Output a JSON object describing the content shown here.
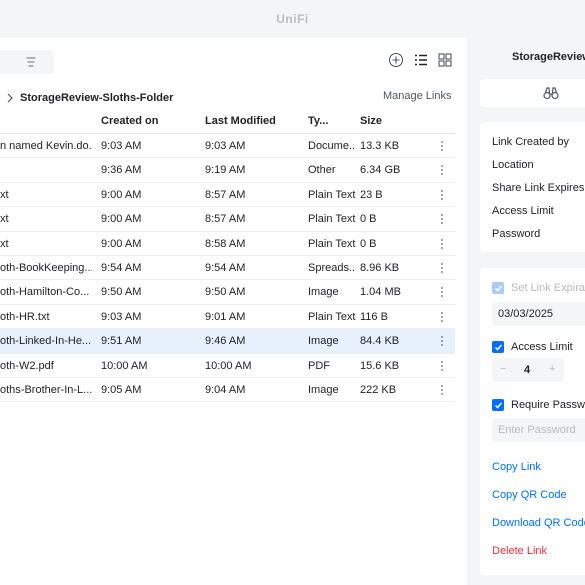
{
  "app": {
    "brand": "UniFi"
  },
  "toolbar": {
    "add_icon": "plus-circle-icon",
    "list_icon": "list-view-icon",
    "grid_icon": "grid-view-icon"
  },
  "breadcrumb": {
    "current": "StorageReview-Sloths-Folder"
  },
  "manage_links_label": "Manage Links",
  "table": {
    "columns": [
      "Created on",
      "Last Modified",
      "Ty...",
      "Size"
    ],
    "rows": [
      {
        "name": "n named Kevin.do...",
        "created": "9:03 AM",
        "modified": "9:03 AM",
        "type": "Docume...",
        "size": "13.3 KB"
      },
      {
        "name": "",
        "created": "9:36 AM",
        "modified": "9:19 AM",
        "type": "Other",
        "size": "6.34 GB"
      },
      {
        "name": "xt",
        "created": "9:00 AM",
        "modified": "8:57 AM",
        "type": "Plain Text",
        "size": "23 B"
      },
      {
        "name": "xt",
        "created": "9:00 AM",
        "modified": "8:57 AM",
        "type": "Plain Text",
        "size": "0 B"
      },
      {
        "name": "xt",
        "created": "9:00 AM",
        "modified": "8:58 AM",
        "type": "Plain Text",
        "size": "0 B"
      },
      {
        "name": "oth-BookKeeping....",
        "created": "9:54 AM",
        "modified": "9:54 AM",
        "type": "Spreads...",
        "size": "8.96 KB"
      },
      {
        "name": "oth-Hamilton-Co...",
        "created": "9:50 AM",
        "modified": "9:50 AM",
        "type": "Image",
        "size": "1.04 MB"
      },
      {
        "name": "oth-HR.txt",
        "created": "9:03 AM",
        "modified": "9:01 AM",
        "type": "Plain Text",
        "size": "116 B"
      },
      {
        "name": "oth-Linked-In-He...",
        "created": "9:51 AM",
        "modified": "9:46 AM",
        "type": "Image",
        "size": "84.4 KB"
      },
      {
        "name": "oth-W2.pdf",
        "created": "10:00 AM",
        "modified": "10:00 AM",
        "type": "PDF",
        "size": "15.6 KB"
      },
      {
        "name": "oths-Brother-In-L...",
        "created": "9:05 AM",
        "modified": "9:04 AM",
        "type": "Image",
        "size": "222 KB"
      }
    ]
  },
  "sidebar": {
    "title": "StorageReview-",
    "info_labels": [
      "Link Created by",
      "Location",
      "Share Link Expires",
      "Access Limit",
      "Password"
    ],
    "set_expiration_label": "Set Link Expiratio",
    "expiration_date": "03/03/2025",
    "access_limit_label": "Access Limit",
    "access_limit_value": "4",
    "stepper_minus": "−",
    "stepper_plus": "+",
    "require_password_label": "Require Passwor",
    "password_placeholder": "Enter Password",
    "copy_link": "Copy Link",
    "copy_qr": "Copy QR Code",
    "download_qr": "Download QR Code",
    "delete_link": "Delete Link"
  },
  "colors": {
    "accent": "#006fff",
    "danger": "#e5323b",
    "selected_row": "#e6f1fd"
  }
}
